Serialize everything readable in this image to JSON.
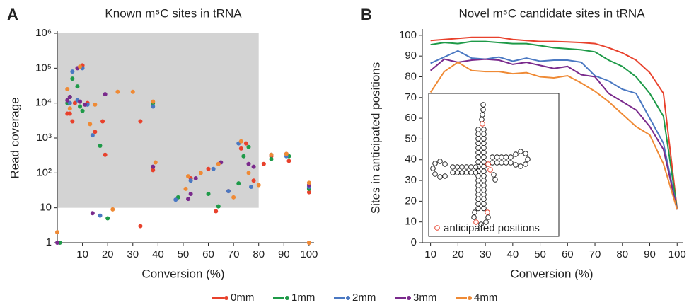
{
  "chart_data": [
    {
      "type": "scatter",
      "panel_label": "A",
      "title": "Known m⁵C sites in tRNA",
      "xlabel": "Conversion (%)",
      "ylabel": "Read coverage",
      "xlim": [
        0,
        102
      ],
      "xticks": [
        10,
        20,
        30,
        40,
        50,
        60,
        70,
        80,
        90,
        100
      ],
      "ylim": [
        1,
        1000000
      ],
      "yscale": "log",
      "yticks": [
        1,
        10,
        {
          "value": 100,
          "label": "10²"
        },
        {
          "value": 1000,
          "label": "10³"
        },
        {
          "value": 10000,
          "label": "10⁴"
        },
        {
          "value": 100000,
          "label": "10⁵"
        },
        {
          "value": 1000000,
          "label": "10⁶"
        }
      ],
      "shaded_region": {
        "xlim": [
          0,
          80
        ],
        "ylim": [
          10,
          1000000
        ],
        "color": "#d3d3d3"
      },
      "series": [
        {
          "color": "#e8412c",
          "x": [
            4,
            5,
            6,
            7,
            10,
            12,
            15,
            18,
            19,
            33,
            33,
            38,
            53,
            60,
            63,
            68,
            73,
            75,
            78,
            82,
            85,
            91,
            92,
            100,
            100
          ],
          "values": [
            5000,
            5000,
            3000,
            10000,
            120000,
            10000,
            1500,
            3000,
            330,
            3,
            3000,
            120,
            70,
            130,
            8,
            30,
            500,
            700,
            60,
            180,
            300,
            350,
            220,
            28,
            1
          ]
        },
        {
          "color": "#1e9a48",
          "x": [
            4,
            5,
            6,
            8,
            9,
            10,
            17,
            20,
            38,
            48,
            60,
            64,
            72,
            74,
            76,
            85,
            92,
            100,
            1
          ],
          "values": [
            10000,
            15000,
            50000,
            30000,
            8000,
            6000,
            600,
            5,
            10000,
            20,
            25,
            11,
            50,
            300,
            550,
            250,
            300,
            35,
            1
          ]
        },
        {
          "color": "#4a78c2",
          "x": [
            5,
            6,
            8,
            10,
            12,
            14,
            17,
            38,
            47,
            53,
            62,
            68,
            72,
            77,
            85,
            91,
            100
          ],
          "values": [
            10000,
            80000,
            12000,
            100000,
            9000,
            1200,
            6,
            8000,
            17,
            60,
            130,
            30,
            700,
            40,
            330,
            300,
            40
          ]
        },
        {
          "color": "#7a2a8c",
          "x": [
            4,
            5,
            8,
            9,
            11,
            14,
            19,
            38,
            52,
            53,
            55,
            65,
            76,
            78,
            100,
            0
          ],
          "values": [
            12000,
            15000,
            100000,
            11000,
            9000,
            7,
            18000,
            150,
            18,
            25,
            70,
            200,
            180,
            150,
            45,
            1
          ]
        },
        {
          "color": "#ef8a35",
          "x": [
            4,
            5,
            9,
            13,
            15,
            22,
            24,
            30,
            38,
            39,
            51,
            52,
            57,
            64,
            70,
            73,
            76,
            80,
            85,
            91,
            100,
            0,
            100
          ],
          "values": [
            25000,
            7000,
            110000,
            2500,
            9000,
            9,
            21000,
            21000,
            11000,
            200,
            35,
            80,
            100,
            180,
            20,
            800,
            100,
            45,
            330,
            350,
            52,
            2,
            1
          ]
        }
      ]
    },
    {
      "type": "line",
      "panel_label": "B",
      "title": "Novel m⁵C candidate sites in tRNA",
      "xlabel": "Conversion (%)",
      "ylabel": "Sites in anticipated positions",
      "xlim": [
        7,
        102
      ],
      "xticks": [
        10,
        20,
        30,
        40,
        50,
        60,
        70,
        80,
        90,
        100
      ],
      "ylim": [
        0,
        102
      ],
      "yticks": [
        0,
        10,
        20,
        30,
        40,
        50,
        60,
        70,
        80,
        90,
        100
      ],
      "x": [
        10,
        15,
        20,
        25,
        30,
        35,
        40,
        45,
        50,
        55,
        60,
        65,
        70,
        75,
        80,
        85,
        90,
        95,
        100
      ],
      "inset_legend": "anticipated positions",
      "series": [
        {
          "name": "0mm",
          "color": "#e8412c",
          "values": [
            97.5,
            98,
            98.5,
            99,
            99,
            99,
            98,
            97.5,
            97,
            97,
            96.8,
            96.5,
            96,
            94,
            91.5,
            88,
            82,
            72,
            16
          ]
        },
        {
          "name": "1mm",
          "color": "#1e9a48",
          "values": [
            95.5,
            96.5,
            96,
            97,
            97,
            96.5,
            96,
            96,
            95,
            94,
            93.5,
            93,
            92,
            88,
            85,
            80,
            72,
            61,
            16
          ]
        },
        {
          "name": "2mm",
          "color": "#4a78c2",
          "values": [
            86.5,
            89.5,
            92.5,
            89,
            88.5,
            89.5,
            87.5,
            89,
            87.5,
            88,
            88,
            87,
            80.5,
            78,
            74,
            72,
            60,
            48,
            16
          ]
        },
        {
          "name": "3mm",
          "color": "#7a2a8c",
          "values": [
            83,
            88.5,
            87,
            88,
            88.5,
            88,
            86,
            87,
            85.5,
            84,
            85,
            81,
            80,
            72,
            68,
            64,
            56,
            45,
            16
          ]
        },
        {
          "name": "4mm",
          "color": "#ef8a35",
          "values": [
            72.5,
            82.5,
            87,
            83,
            82.5,
            82.5,
            81.5,
            82,
            80,
            79.5,
            80.5,
            77,
            73,
            68,
            62,
            56,
            52,
            38,
            16
          ]
        }
      ]
    }
  ]
}
